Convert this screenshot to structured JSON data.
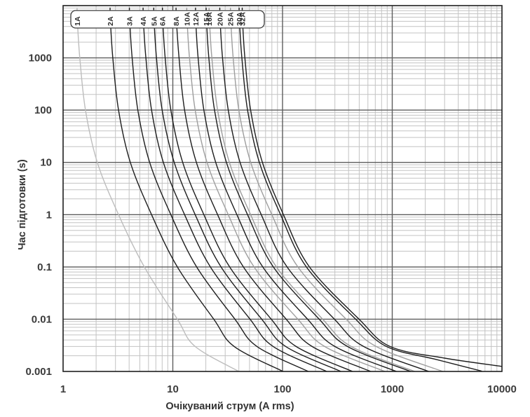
{
  "figure": {
    "background": "#ffffff",
    "border_color": "#1f1f1f",
    "grid_minor_color": "#c3c3c3",
    "grid_major_color": "#5e5e5e",
    "label_box": {
      "fill": "#ffffff",
      "stroke": "#3a3a3a",
      "labels": [
        "1A",
        "2A",
        "3A",
        "4A",
        "5A",
        "6A",
        "8A",
        "10A",
        "12A",
        "15A",
        "16A",
        "20A",
        "25A",
        "30A",
        "32A"
      ]
    }
  },
  "chart_data": {
    "type": "line",
    "title": "",
    "xlabel": "Очікуваний струм (A rms)",
    "ylabel": "Час підготовки (s)",
    "x_scale": "log",
    "y_scale": "log",
    "xlim": [
      1,
      10000
    ],
    "ylim": [
      0.001,
      10000
    ],
    "x_ticks": [
      "1",
      "10",
      "100",
      "1000",
      "10000"
    ],
    "y_ticks": [
      "1000",
      "100",
      "10",
      "1",
      "0.1",
      "0.01",
      "0.001"
    ],
    "grid": "log-log major+minor",
    "legend_position": "top-box",
    "series": [
      {
        "name": "1A",
        "rating_amps": 1,
        "color": "#bdbdbd",
        "points": [
          [
            1.34,
            9000
          ],
          [
            1.35,
            5000
          ],
          [
            1.42,
            1000
          ],
          [
            1.6,
            100
          ],
          [
            2.05,
            10
          ],
          [
            3.2,
            1
          ],
          [
            5.5,
            0.1
          ],
          [
            11,
            0.01
          ],
          [
            16,
            0.003
          ],
          [
            40,
            0.001
          ]
        ]
      },
      {
        "name": "2A",
        "rating_amps": 2,
        "color": "#1d1d1d",
        "points": [
          [
            2.68,
            9000
          ],
          [
            2.7,
            5000
          ],
          [
            2.84,
            1000
          ],
          [
            3.2,
            100
          ],
          [
            4.1,
            10
          ],
          [
            6.4,
            1
          ],
          [
            11,
            0.1
          ],
          [
            23.6,
            0.01
          ],
          [
            36.3,
            0.003
          ],
          [
            101,
            0.001
          ]
        ]
      },
      {
        "name": "3A",
        "rating_amps": 3,
        "color": "#1d1d1d",
        "points": [
          [
            4.02,
            9000
          ],
          [
            4.05,
            5000
          ],
          [
            4.26,
            1000
          ],
          [
            4.8,
            100
          ],
          [
            6.15,
            10
          ],
          [
            9.6,
            1
          ],
          [
            16.5,
            0.1
          ],
          [
            36.8,
            0.01
          ],
          [
            58.5,
            0.003
          ],
          [
            172,
            0.001
          ]
        ]
      },
      {
        "name": "4A",
        "rating_amps": 4,
        "color": "#1d1d1d",
        "points": [
          [
            5.36,
            9000
          ],
          [
            5.4,
            5000
          ],
          [
            5.68,
            1000
          ],
          [
            6.4,
            100
          ],
          [
            8.2,
            10
          ],
          [
            12.8,
            1
          ],
          [
            22,
            0.1
          ],
          [
            50.6,
            0.01
          ],
          [
            82.2,
            0.003
          ],
          [
            253,
            0.001
          ]
        ]
      },
      {
        "name": "5A",
        "rating_amps": 5,
        "color": "#1d1d1d",
        "points": [
          [
            6.7,
            9000
          ],
          [
            6.75,
            5000
          ],
          [
            7.1,
            1000
          ],
          [
            8.0,
            100
          ],
          [
            10.3,
            10
          ],
          [
            16,
            1
          ],
          [
            27.5,
            0.1
          ],
          [
            64.6,
            0.01
          ],
          [
            107,
            0.003
          ],
          [
            340,
            0.001
          ]
        ]
      },
      {
        "name": "6A",
        "rating_amps": 6,
        "color": "#1d1d1d",
        "points": [
          [
            8.04,
            9000
          ],
          [
            8.1,
            5000
          ],
          [
            8.52,
            1000
          ],
          [
            9.6,
            100
          ],
          [
            12.3,
            10
          ],
          [
            19.2,
            1
          ],
          [
            33,
            0.1
          ],
          [
            78.9,
            0.01
          ],
          [
            133,
            0.003
          ],
          [
            434,
            0.001
          ]
        ]
      },
      {
        "name": "8A",
        "rating_amps": 8,
        "color": "#1d1d1d",
        "points": [
          [
            10.7,
            9000
          ],
          [
            10.8,
            5000
          ],
          [
            11.4,
            1000
          ],
          [
            12.8,
            100
          ],
          [
            16.4,
            10
          ],
          [
            25.6,
            1
          ],
          [
            44,
            0.1
          ],
          [
            108,
            0.01
          ],
          [
            186,
            0.003
          ],
          [
            636,
            0.001
          ]
        ]
      },
      {
        "name": "10A",
        "rating_amps": 10,
        "color": "#9e9e9e",
        "points": [
          [
            13.4,
            9000
          ],
          [
            13.5,
            5000
          ],
          [
            14.2,
            1000
          ],
          [
            16,
            100
          ],
          [
            20.5,
            10
          ],
          [
            32,
            1
          ],
          [
            55,
            0.1
          ],
          [
            138,
            0.01
          ],
          [
            242,
            0.003
          ],
          [
            855,
            0.001
          ]
        ]
      },
      {
        "name": "12A",
        "rating_amps": 12,
        "color": "#1d1d1d",
        "points": [
          [
            16.1,
            9000
          ],
          [
            16.2,
            5000
          ],
          [
            17,
            1000
          ],
          [
            19.2,
            100
          ],
          [
            24.6,
            10
          ],
          [
            38.4,
            1
          ],
          [
            66,
            0.1
          ],
          [
            169,
            0.01
          ],
          [
            300,
            0.003
          ],
          [
            1090,
            0.001
          ]
        ]
      },
      {
        "name": "15A",
        "rating_amps": 15,
        "color": "#1d1d1d",
        "points": [
          [
            20.1,
            9000
          ],
          [
            20.3,
            5000
          ],
          [
            21.3,
            1000
          ],
          [
            24,
            100
          ],
          [
            30.8,
            10
          ],
          [
            48,
            1
          ],
          [
            82.5,
            0.1
          ],
          [
            216,
            0.01
          ],
          [
            391,
            0.003
          ],
          [
            1470,
            0.001
          ]
        ]
      },
      {
        "name": "16A",
        "rating_amps": 16,
        "color": "#9e9e9e",
        "points": [
          [
            21.4,
            9000
          ],
          [
            21.6,
            5000
          ],
          [
            22.7,
            1000
          ],
          [
            25.6,
            100
          ],
          [
            32.8,
            10
          ],
          [
            51.2,
            1
          ],
          [
            88,
            0.1
          ],
          [
            232,
            0.01
          ],
          [
            422,
            0.003
          ],
          [
            1600,
            0.001
          ]
        ]
      },
      {
        "name": "20A",
        "rating_amps": 20,
        "color": "#1d1d1d",
        "points": [
          [
            26.8,
            9000
          ],
          [
            27,
            5000
          ],
          [
            28.4,
            1000
          ],
          [
            32,
            100
          ],
          [
            41,
            10
          ],
          [
            64,
            1
          ],
          [
            110,
            0.1
          ],
          [
            297,
            0.01
          ],
          [
            549,
            0.003
          ],
          [
            2150,
            0.001
          ]
        ]
      },
      {
        "name": "25A",
        "rating_amps": 25,
        "color": "#9e9e9e",
        "points": [
          [
            33.5,
            9000
          ],
          [
            33.8,
            5000
          ],
          [
            35.5,
            1000
          ],
          [
            40,
            100
          ],
          [
            51.3,
            10
          ],
          [
            80,
            1
          ],
          [
            138,
            0.1
          ],
          [
            380,
            0.01
          ],
          [
            714,
            0.003
          ],
          [
            2890,
            0.001
          ]
        ]
      },
      {
        "name": "30A",
        "rating_amps": 30,
        "color": "#1d1d1d",
        "points": [
          [
            40.2,
            9000
          ],
          [
            40.5,
            5000
          ],
          [
            42.6,
            1000
          ],
          [
            48,
            100
          ],
          [
            61.5,
            10
          ],
          [
            96,
            1
          ],
          [
            165,
            0.1
          ],
          [
            464,
            0.01
          ],
          [
            886,
            0.003
          ],
          [
            2500,
            0.0017
          ],
          [
            6500,
            0.00102
          ]
        ]
      },
      {
        "name": "32A",
        "rating_amps": 32,
        "color": "#1d1d1d",
        "points": [
          [
            42.9,
            9000
          ],
          [
            43.2,
            5000
          ],
          [
            45.4,
            1000
          ],
          [
            51.2,
            100
          ],
          [
            65.6,
            10
          ],
          [
            102,
            1
          ],
          [
            176,
            0.1
          ],
          [
            498,
            0.01
          ],
          [
            955,
            0.003
          ],
          [
            3000,
            0.0018
          ],
          [
            10000,
            0.00125
          ]
        ]
      }
    ]
  }
}
